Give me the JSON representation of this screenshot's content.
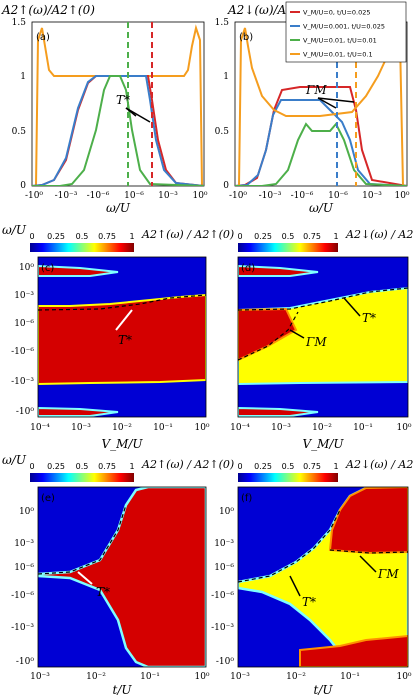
{
  "colors": {
    "red": "#d62728",
    "blue": "#3a7dc9",
    "green": "#4daf4a",
    "orange": "#f59d1e",
    "cbar": [
      "#00008f",
      "#0000ff",
      "#00ffff",
      "#ffff00",
      "#ff0000",
      "#800000"
    ],
    "fill_red": "#d40000",
    "fill_blue": "#0000d4",
    "fill_yellow": "#ffff00"
  },
  "top": {
    "ylabel_a": "A2↑(ω)/A2↑(0)",
    "ylabel_b": "A2↓(ω)/A2↑(0)",
    "xlabel": "ω/U",
    "panel_a": "(a)",
    "panel_b": "(b)",
    "annot_a": "T*",
    "annot_b": "ΓM",
    "yticks": [
      "0",
      "0.5",
      "1",
      "1.5"
    ],
    "xticks": [
      "-10⁰",
      "-10⁻³",
      "-10⁻⁶",
      "10⁻⁶",
      "10⁻³",
      "10⁰"
    ],
    "legend": [
      "V_M/U=0, t/U=0.025",
      "V_M/U=0.001, t/U=0.025",
      "V_M/U=0.01, t/U=0.01",
      "V_M/U=0.01, t/U=0.1"
    ]
  },
  "maps": {
    "colorbar_ticks": [
      "0",
      "0.25",
      "0.5",
      "0.75",
      "1"
    ],
    "cbar_title_up": "A2↑(ω) / A2↑(0)",
    "cbar_title_down": "A2↓(ω) / A2↑(0)",
    "ylabel": "ω/U",
    "yticks": [
      "10⁰",
      "10⁻³",
      "10⁻⁶",
      "-10⁻⁶",
      "-10⁻³",
      "-10⁰"
    ],
    "xticks_v": [
      "10⁻⁴",
      "10⁻³",
      "10⁻²",
      "10⁻¹",
      "10⁰"
    ],
    "xticks_t": [
      "10⁻³",
      "10⁻²",
      "10⁻¹",
      "10⁰"
    ],
    "xlabel_v": "V_M/U",
    "xlabel_t": "t/U",
    "panel_c": "(c)",
    "panel_d": "(d)",
    "panel_e": "(e)",
    "panel_f": "(f)",
    "annot_c": "T*",
    "annot_d1": "ΓM",
    "annot_d2": "T*",
    "annot_e": "T*",
    "annot_f1": "T*",
    "annot_f2": "ΓM"
  },
  "chart_data": [
    {
      "type": "line",
      "title": "(a)",
      "xlabel": "ω/U",
      "ylabel": "A2↑(ω)/A2↑(0)",
      "ylim": [
        0,
        1.5
      ],
      "x_ticks": [
        "-10⁰",
        "-10⁻³",
        "-10⁻⁶",
        "10⁻⁶",
        "10⁻³",
        "10⁰"
      ],
      "series": [
        {
          "name": "V_M/U=0, t/U=0.025",
          "plateau": 1.0
        },
        {
          "name": "V_M/U=0.001, t/U=0.025",
          "plateau": 1.0
        },
        {
          "name": "V_M/U=0.01, t/U=0.01",
          "plateau": 1.0
        },
        {
          "name": "V_M/U=0.01, t/U=0.1",
          "plateau": 1.0
        }
      ]
    },
    {
      "type": "line",
      "title": "(b)",
      "xlabel": "ω/U",
      "ylabel": "A2↓(ω)/A2↑(0)",
      "ylim": [
        0,
        1.5
      ],
      "series": [
        {
          "name": "V_M/U=0, t/U=0.025",
          "plateau": 1.0
        },
        {
          "name": "V_M/U=0.001, t/U=0.025",
          "plateau": 0.75
        },
        {
          "name": "V_M/U=0.01, t/U=0.01",
          "plateau": 0.5
        },
        {
          "name": "V_M/U=0.01, t/U=0.1",
          "plateau": 0.5
        }
      ]
    },
    {
      "type": "heatmap",
      "title": "(c)",
      "xlabel": "V_M/U",
      "ylabel": "ω/U",
      "zlim": [
        0,
        1
      ]
    },
    {
      "type": "heatmap",
      "title": "(d)",
      "xlabel": "V_M/U",
      "ylabel": "ω/U",
      "zlim": [
        0,
        1
      ]
    },
    {
      "type": "heatmap",
      "title": "(e)",
      "xlabel": "t/U",
      "ylabel": "ω/U",
      "zlim": [
        0,
        1
      ]
    },
    {
      "type": "heatmap",
      "title": "(f)",
      "xlabel": "t/U",
      "ylabel": "ω/U",
      "zlim": [
        0,
        1
      ]
    }
  ]
}
